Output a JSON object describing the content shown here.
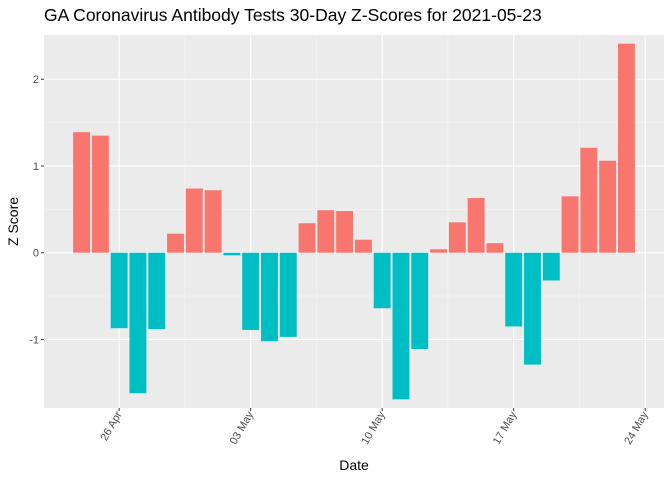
{
  "chart_data": {
    "type": "bar",
    "title": "GA Coronavirus Antibody Tests 30-Day Z-Scores for 2021-05-23",
    "xlabel": "Date",
    "ylabel": "Z Score",
    "x": [
      "2021-04-24",
      "2021-04-25",
      "2021-04-26",
      "2021-04-27",
      "2021-04-28",
      "2021-04-29",
      "2021-04-30",
      "2021-05-01",
      "2021-05-02",
      "2021-05-03",
      "2021-05-04",
      "2021-05-05",
      "2021-05-06",
      "2021-05-07",
      "2021-05-08",
      "2021-05-09",
      "2021-05-10",
      "2021-05-11",
      "2021-05-12",
      "2021-05-13",
      "2021-05-14",
      "2021-05-15",
      "2021-05-16",
      "2021-05-17",
      "2021-05-18",
      "2021-05-19",
      "2021-05-20",
      "2021-05-21",
      "2021-05-22",
      "2021-05-23"
    ],
    "values": [
      1.39,
      1.35,
      -0.87,
      -1.62,
      -0.88,
      0.22,
      0.74,
      0.72,
      -0.03,
      -0.89,
      -1.02,
      -0.97,
      0.34,
      0.49,
      0.48,
      0.15,
      -0.64,
      -1.69,
      -1.11,
      0.04,
      0.35,
      0.63,
      0.11,
      -0.85,
      -1.29,
      -0.32,
      0.65,
      1.21,
      1.06,
      2.41
    ],
    "x_ticks": [
      {
        "date": "2021-04-26",
        "label": "26 Apr"
      },
      {
        "date": "2021-05-03",
        "label": "03 May"
      },
      {
        "date": "2021-05-10",
        "label": "10 May"
      },
      {
        "date": "2021-05-17",
        "label": "17 May"
      },
      {
        "date": "2021-05-24",
        "label": "24 May"
      }
    ],
    "x_tick_angle": -60,
    "y_ticks": [
      -1,
      0,
      1,
      2
    ],
    "xlim": [
      "2021-04-22",
      "2021-05-25"
    ],
    "ylim": [
      -1.79,
      2.51
    ],
    "grid": true,
    "legend": "none",
    "colors": {
      "positive": "#F8766D",
      "negative": "#00BFC4",
      "panel": "#EBEBEB",
      "grid_major": "#FFFFFF",
      "grid_minor": "#F5F5F5"
    }
  }
}
